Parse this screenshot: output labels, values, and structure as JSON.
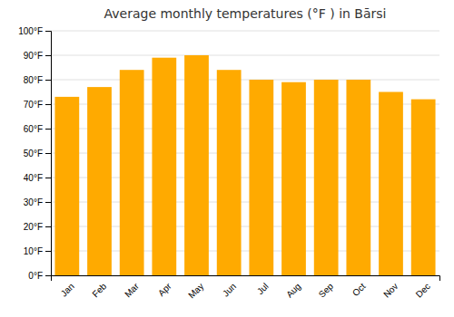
{
  "chart_data": {
    "type": "bar",
    "title": "Average monthly temperatures (°F ) in Bārsi",
    "categories": [
      "Jan",
      "Feb",
      "Mar",
      "Apr",
      "May",
      "Jun",
      "Jul",
      "Aug",
      "Sep",
      "Oct",
      "Nov",
      "Dec"
    ],
    "values": [
      73,
      77,
      84,
      89,
      90,
      84,
      80,
      79,
      80,
      80,
      75,
      72
    ],
    "color": "#FFAA00",
    "ylim": [
      0,
      100
    ],
    "yticks": [
      {
        "value": 0,
        "label": "0°F"
      },
      {
        "value": 10,
        "label": "10°F"
      },
      {
        "value": 20,
        "label": "20°F"
      },
      {
        "value": 30,
        "label": "30°F"
      },
      {
        "value": 40,
        "label": "40°F"
      },
      {
        "value": 50,
        "label": "50°F"
      },
      {
        "value": 60,
        "label": "60°F"
      },
      {
        "value": 70,
        "label": "70°F"
      },
      {
        "value": 80,
        "label": "80°F"
      },
      {
        "value": 90,
        "label": "90°F"
      },
      {
        "value": 100,
        "label": "100°F"
      }
    ],
    "grid": true
  }
}
